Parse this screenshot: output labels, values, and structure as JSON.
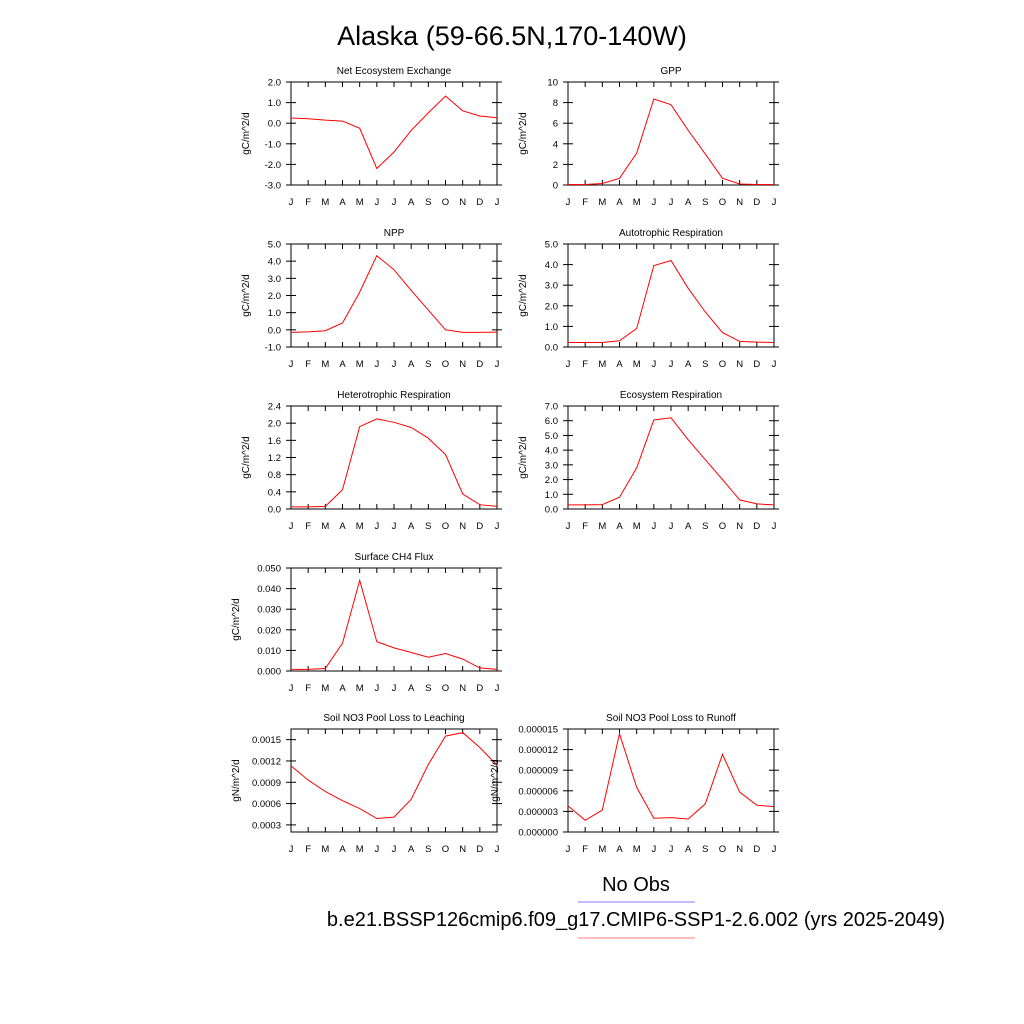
{
  "figure": {
    "title": "Alaska (59-66.5N,170-140W)"
  },
  "legend": {
    "entries": [
      {
        "label": "No Obs",
        "color": "#7f7fff"
      },
      {
        "label": "b.e21.BSSP126cmip6.f09_g17.CMIP6-SSP1-2.6.002 (yrs 2025-2049)",
        "color": "#ff7f7f"
      }
    ]
  },
  "colors": {
    "series": "#ff0000"
  },
  "chart_data": [
    {
      "type": "line",
      "title": "Net Ecosystem Exchange",
      "ylabel": "gC/m^2/d",
      "categories": [
        "J",
        "F",
        "M",
        "A",
        "M",
        "J",
        "J",
        "A",
        "S",
        "O",
        "N",
        "D",
        "J"
      ],
      "ylim": [
        -3.0,
        2.0
      ],
      "yticks": [
        -3.0,
        -2.0,
        -1.0,
        0.0,
        1.0,
        2.0
      ],
      "ytick_labels": [
        "-3.0",
        "-2.0",
        "-1.0",
        "0.0",
        "1.0",
        "2.0"
      ],
      "series": [
        {
          "values": [
            0.25,
            0.22,
            0.15,
            0.1,
            -0.25,
            -2.2,
            -1.4,
            -0.35,
            0.5,
            1.32,
            0.6,
            0.35,
            0.26
          ]
        }
      ]
    },
    {
      "type": "line",
      "title": "GPP",
      "ylabel": "gC/m^2/d",
      "categories": [
        "J",
        "F",
        "M",
        "A",
        "M",
        "J",
        "J",
        "A",
        "S",
        "O",
        "N",
        "D",
        "J"
      ],
      "ylim": [
        0,
        10
      ],
      "yticks": [
        0,
        2,
        4,
        6,
        8,
        10
      ],
      "ytick_labels": [
        "0",
        "2",
        "4",
        "6",
        "8",
        "10"
      ],
      "series": [
        {
          "values": [
            0.05,
            0.05,
            0.15,
            0.65,
            3.1,
            8.35,
            7.8,
            5.3,
            3.0,
            0.65,
            0.1,
            0.05,
            0.05
          ]
        }
      ]
    },
    {
      "type": "line",
      "title": "NPP",
      "ylabel": "gC/m^2/d",
      "categories": [
        "J",
        "F",
        "M",
        "A",
        "M",
        "J",
        "J",
        "A",
        "S",
        "O",
        "N",
        "D",
        "J"
      ],
      "ylim": [
        -1.0,
        5.0
      ],
      "yticks": [
        -1.0,
        0.0,
        1.0,
        2.0,
        3.0,
        4.0,
        5.0
      ],
      "ytick_labels": [
        "-1.0",
        "0.0",
        "1.0",
        "2.0",
        "3.0",
        "4.0",
        "5.0"
      ],
      "series": [
        {
          "values": [
            -0.15,
            -0.12,
            -0.05,
            0.4,
            2.2,
            4.32,
            3.5,
            2.3,
            1.15,
            0.0,
            -0.15,
            -0.15,
            -0.13
          ]
        }
      ]
    },
    {
      "type": "line",
      "title": "Autotrophic Respiration",
      "ylabel": "gC/m^2/d",
      "categories": [
        "J",
        "F",
        "M",
        "A",
        "M",
        "J",
        "J",
        "A",
        "S",
        "O",
        "N",
        "D",
        "J"
      ],
      "ylim": [
        0.0,
        5.0
      ],
      "yticks": [
        0.0,
        1.0,
        2.0,
        3.0,
        4.0,
        5.0
      ],
      "ytick_labels": [
        "0.0",
        "1.0",
        "2.0",
        "3.0",
        "4.0",
        "5.0"
      ],
      "series": [
        {
          "values": [
            0.22,
            0.22,
            0.22,
            0.3,
            0.9,
            3.95,
            4.2,
            2.85,
            1.7,
            0.7,
            0.27,
            0.24,
            0.22
          ]
        }
      ]
    },
    {
      "type": "line",
      "title": "Heterotrophic Respiration",
      "ylabel": "gC/m^2/d",
      "categories": [
        "J",
        "F",
        "M",
        "A",
        "M",
        "J",
        "J",
        "A",
        "S",
        "O",
        "N",
        "D",
        "J"
      ],
      "ylim": [
        0.0,
        2.4
      ],
      "yticks": [
        0.0,
        0.4,
        0.8,
        1.2,
        1.6,
        2.0,
        2.4
      ],
      "ytick_labels": [
        "0.0",
        "0.4",
        "0.8",
        "1.2",
        "1.6",
        "2.0",
        "2.4"
      ],
      "series": [
        {
          "values": [
            0.05,
            0.05,
            0.06,
            0.45,
            1.92,
            2.1,
            2.02,
            1.9,
            1.65,
            1.27,
            0.35,
            0.1,
            0.06
          ]
        }
      ]
    },
    {
      "type": "line",
      "title": "Ecosystem Respiration",
      "ylabel": "gC/m^2/d",
      "categories": [
        "J",
        "F",
        "M",
        "A",
        "M",
        "J",
        "J",
        "A",
        "S",
        "O",
        "N",
        "D",
        "J"
      ],
      "ylim": [
        0.0,
        7.0
      ],
      "yticks": [
        0.0,
        1.0,
        2.0,
        3.0,
        4.0,
        5.0,
        6.0,
        7.0
      ],
      "ytick_labels": [
        "0.0",
        "1.0",
        "2.0",
        "3.0",
        "4.0",
        "5.0",
        "6.0",
        "7.0"
      ],
      "series": [
        {
          "values": [
            0.28,
            0.28,
            0.3,
            0.8,
            2.8,
            6.05,
            6.2,
            4.7,
            3.35,
            2.0,
            0.62,
            0.35,
            0.28
          ]
        }
      ]
    },
    {
      "type": "line",
      "title": "Surface CH4 Flux",
      "ylabel": "gC/m^2/d",
      "categories": [
        "J",
        "F",
        "M",
        "A",
        "M",
        "J",
        "J",
        "A",
        "S",
        "O",
        "N",
        "D",
        "J"
      ],
      "ylim": [
        0.0,
        0.05
      ],
      "yticks": [
        0.0,
        0.01,
        0.02,
        0.03,
        0.04,
        0.05
      ],
      "ytick_labels": [
        "0.000",
        "0.010",
        "0.020",
        "0.030",
        "0.040",
        "0.050"
      ],
      "series": [
        {
          "values": [
            0.0008,
            0.0008,
            0.0012,
            0.0135,
            0.044,
            0.0142,
            0.0112,
            0.009,
            0.0067,
            0.0085,
            0.0058,
            0.0015,
            0.0008
          ]
        }
      ]
    },
    {
      "type": "line",
      "title": "Soil NO3 Pool Loss to Leaching",
      "ylabel": "gN/m^2/d",
      "categories": [
        "J",
        "F",
        "M",
        "A",
        "M",
        "J",
        "J",
        "A",
        "S",
        "O",
        "N",
        "D",
        "J"
      ],
      "ylim": [
        0.0002,
        0.00165
      ],
      "yticks": [
        0.0003,
        0.0006,
        0.0009,
        0.0012,
        0.0015
      ],
      "ytick_labels": [
        "0.0003",
        "0.0006",
        "0.0009",
        "0.0012",
        "0.0015"
      ],
      "series": [
        {
          "values": [
            0.00113,
            0.00093,
            0.00077,
            0.00064,
            0.00053,
            0.00039,
            0.00041,
            0.00066,
            0.00115,
            0.00155,
            0.0016,
            0.00139,
            0.00114
          ]
        }
      ]
    },
    {
      "type": "line",
      "title": "Soil NO3 Pool Loss to Runoff",
      "ylabel": "gN/m^2/d",
      "categories": [
        "J",
        "F",
        "M",
        "A",
        "M",
        "J",
        "J",
        "A",
        "S",
        "O",
        "N",
        "D",
        "J"
      ],
      "ylim": [
        0.0,
        1.5e-05
      ],
      "yticks": [
        0.0,
        3e-06,
        6e-06,
        9e-06,
        1.2e-05,
        1.5e-05
      ],
      "ytick_labels": [
        "0.000000",
        "0.000003",
        "0.000006",
        "0.000009",
        "0.000012",
        "0.000015"
      ],
      "series": [
        {
          "values": [
            3.8e-06,
            1.7e-06,
            3.2e-06,
            1.43e-05,
            6.5e-06,
            2e-06,
            2.1e-06,
            1.9e-06,
            4.1e-06,
            1.13e-05,
            5.8e-06,
            3.9e-06,
            3.7e-06
          ]
        }
      ]
    }
  ]
}
